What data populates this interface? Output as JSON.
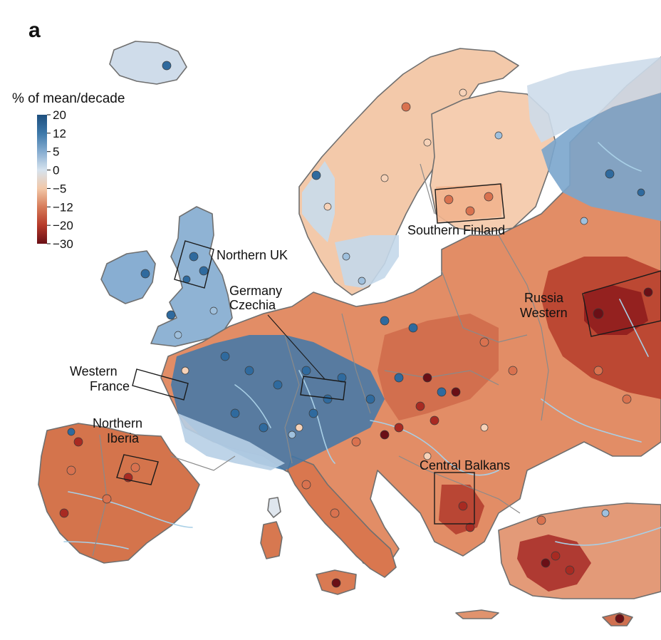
{
  "panel_letter": "a",
  "legend": {
    "title": "% of mean/decade",
    "ticks": [
      "20",
      "12",
      "5",
      "0",
      "−5",
      "−12",
      "−20",
      "−30"
    ],
    "colors": [
      "#1d4f7e",
      "#3d78a9",
      "#86acd0",
      "#d6e3ee",
      "#f2c8a8",
      "#d77c59",
      "#b63a2a",
      "#6a0f16"
    ]
  },
  "palette": {
    "sea": "#ffffff",
    "strong_wet": "#2f6a9e",
    "wet": "#6f9cc8",
    "light_wet": "#b9d0e6",
    "neutral": "#eaeef2",
    "light_dry": "#f6ccae",
    "dry": "#dd8a63",
    "strong_dry": "#be4a34",
    "very_dry": "#9e2320",
    "river": "#a8cfe6"
  },
  "regions": [
    {
      "id": "northern-uk",
      "label": "Northern UK"
    },
    {
      "id": "germany-czechia",
      "label_lines": [
        "Germany",
        "Czechia"
      ]
    },
    {
      "id": "western-france",
      "label_lines": [
        "Western",
        "France"
      ]
    },
    {
      "id": "northern-iberia",
      "label_lines": [
        "Northern",
        "Iberia"
      ]
    },
    {
      "id": "southern-finland",
      "label": "Southern Finland"
    },
    {
      "id": "russia-western",
      "label_lines": [
        "Russia",
        "Western"
      ]
    },
    {
      "id": "central-balkans",
      "label": "Central Balkans"
    }
  ]
}
